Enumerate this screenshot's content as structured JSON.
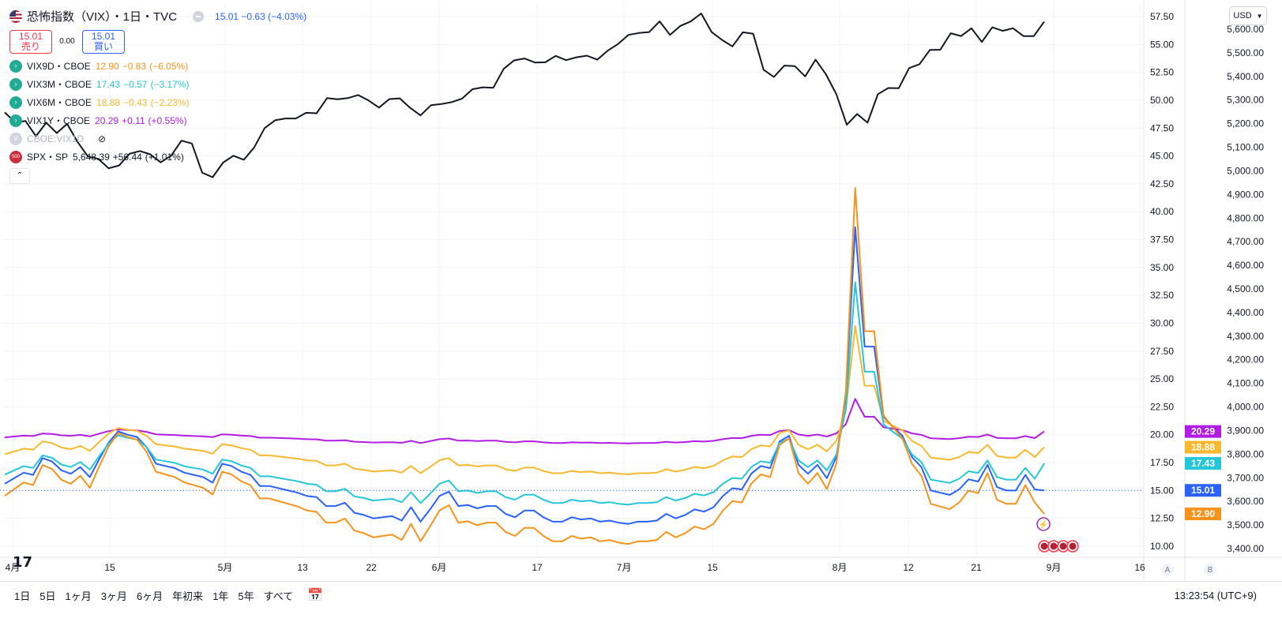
{
  "header": {
    "title": "恐怖指数（VIX）・1日・TVC",
    "last": "15.01",
    "change": "−0.63",
    "change_pct": "(−4.03%)",
    "sell_price": "15.01",
    "sell_label": "売り",
    "spread": "0.00",
    "buy_price": "15.01",
    "buy_label": "買い"
  },
  "legend": [
    {
      "name": "VIX9D・CBOE",
      "value": "12.90",
      "change": "−0.83",
      "pct": "(−6.05%)",
      "color": "#f7931a"
    },
    {
      "name": "VIX3M・CBOE",
      "value": "17.43",
      "change": "−0.57",
      "pct": "(−3.17%)",
      "color": "#26c6da"
    },
    {
      "name": "VIX6M・CBOE",
      "value": "18.88",
      "change": "−0.43",
      "pct": "(−2.23%)",
      "color": "#f9b82d"
    },
    {
      "name": "VIX1Y・CBOE",
      "value": "20.29",
      "change": "+0.11",
      "pct": "(+0.55%)",
      "color": "#b21ce6"
    },
    {
      "name": "CBOE:VIX1D",
      "value": "",
      "change": "",
      "pct": "",
      "color": "#b2b5be",
      "hidden": true
    },
    {
      "name": "SPX・SP",
      "value": "5,648.39",
      "change": "+56.44",
      "pct": "(+1.01%)",
      "color": "#131722"
    }
  ],
  "currency": "USD",
  "axis_a": "A",
  "axis_b": "B",
  "logo": "17",
  "time_ranges": [
    "1日",
    "5日",
    "1ヶ月",
    "3ヶ月",
    "6ヶ月",
    "年初来",
    "1年",
    "5年",
    "すべて"
  ],
  "clock": "13:23:54 (UTC+9)",
  "chart_data": {
    "type": "line",
    "x_labels": [
      "4月",
      "15",
      "5月",
      "13",
      "22",
      "6月",
      "17",
      "7月",
      "15",
      "8月",
      "12",
      "21",
      "9月",
      "16"
    ],
    "left_axis": {
      "ticks": [
        "57.50",
        "55.00",
        "52.50",
        "50.00",
        "47.50",
        "45.00",
        "42.50",
        "40.00",
        "37.50",
        "35.00",
        "32.50",
        "30.00",
        "27.50",
        "25.00",
        "22.50",
        "20.00",
        "17.50",
        "15.00",
        "12.50",
        "10.00"
      ],
      "range": [
        10,
        57.5
      ]
    },
    "right_axis": {
      "ticks": [
        "5,600.00",
        "5,500.00",
        "5,400.00",
        "5,300.00",
        "5,200.00",
        "5,100.00",
        "5,000.00",
        "4,900.00",
        "4,800.00",
        "4,700.00",
        "4,600.00",
        "4,500.00",
        "4,400.00",
        "4,300.00",
        "4,200.00",
        "4,100.00",
        "4,000.00",
        "3,900.00",
        "3,800.00",
        "3,700.00",
        "3,600.00",
        "3,500.00",
        "3,400.00"
      ],
      "range": [
        3400,
        5600
      ]
    },
    "price_labels": [
      {
        "text": "20.29",
        "value": 20.29,
        "color": "#b21ce6"
      },
      {
        "text": "18.88",
        "value": 18.88,
        "color": "#f9b82d"
      },
      {
        "text": "17.43",
        "value": 17.43,
        "color": "#26c6da"
      },
      {
        "text": "15.01",
        "value": 15.01,
        "color": "#2962ff"
      },
      {
        "text": "12.90",
        "value": 12.9,
        "color": "#f7931a"
      }
    ],
    "series": [
      {
        "name": "SPX・SP",
        "axis": "right",
        "color": "#131722",
        "values": [
          5248,
          5205,
          5211,
          5147,
          5204,
          5160,
          5199,
          5123,
          5061,
          5051,
          5011,
          5023,
          5072,
          5084,
          5070,
          5036,
          5064,
          5128,
          5116,
          4992,
          4973,
          5035,
          5064,
          5047,
          5099,
          5181,
          5214,
          5222,
          5222,
          5246,
          5244,
          5308,
          5303,
          5308,
          5321,
          5298,
          5268,
          5304,
          5307,
          5267,
          5235,
          5278,
          5283,
          5291,
          5306,
          5346,
          5354,
          5352,
          5432,
          5468,
          5476,
          5459,
          5460,
          5487,
          5469,
          5481,
          5488,
          5471,
          5509,
          5537,
          5576,
          5584,
          5588,
          5633,
          5576,
          5614,
          5633,
          5667,
          5588,
          5555,
          5527,
          5587,
          5581,
          5428,
          5398,
          5446,
          5444,
          5400,
          5471,
          5409,
          5325,
          5195,
          5241,
          5204,
          5325,
          5351,
          5350,
          5435,
          5452,
          5512,
          5513,
          5583,
          5571,
          5604,
          5546,
          5608,
          5593,
          5604,
          5571,
          5571,
          5632
        ]
      },
      {
        "name": "VIX",
        "axis": "left",
        "color": "#2962ff",
        "values": [
          15.6,
          16.1,
          16.6,
          16.4,
          17.9,
          17.6,
          16.8,
          16.5,
          17.1,
          16.2,
          17.8,
          19.3,
          20.3,
          20.0,
          19.8,
          18.9,
          17.4,
          17.2,
          17.0,
          16.6,
          16.4,
          16.2,
          15.7,
          17.4,
          17.2,
          16.7,
          16.4,
          15.4,
          15.4,
          15.2,
          15.0,
          14.8,
          14.5,
          14.4,
          13.6,
          13.6,
          13.9,
          13.0,
          12.8,
          12.5,
          12.6,
          12.7,
          12.3,
          13.5,
          12.2,
          13.3,
          14.5,
          14.9,
          13.6,
          13.7,
          13.4,
          13.6,
          13.6,
          12.9,
          12.6,
          13.2,
          13.2,
          12.6,
          12.2,
          12.2,
          12.6,
          12.4,
          12.5,
          12.2,
          12.3,
          12.1,
          12.0,
          12.2,
          12.2,
          12.3,
          12.9,
          12.5,
          12.8,
          13.3,
          13.1,
          13.5,
          14.5,
          15.2,
          15.1,
          16.5,
          17.2,
          17.0,
          19.4,
          19.9,
          17.3,
          16.5,
          17.3,
          16.1,
          18.0,
          23.4,
          38.6,
          27.9,
          27.9,
          21.6,
          20.7,
          19.9,
          18.0,
          17.1,
          15.0,
          14.8,
          14.6,
          15.1,
          16.0,
          15.8,
          17.3,
          15.3,
          15.0,
          15.0,
          16.4,
          15.1,
          15.0
        ],
        "note": "approximate"
      }
    ]
  }
}
